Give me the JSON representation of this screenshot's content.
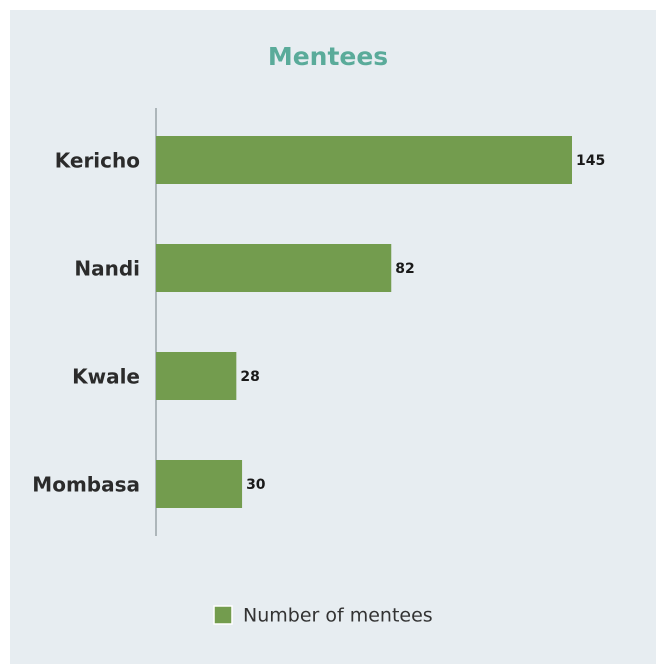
{
  "chart_data": {
    "type": "bar",
    "orientation": "horizontal",
    "title": "Mentees",
    "categories": [
      "Kericho",
      "Nandi",
      "Kwale",
      "Mombasa"
    ],
    "series": [
      {
        "name": "Number of mentees",
        "color": "#739c4e",
        "values": [
          145,
          82,
          28,
          30
        ]
      }
    ],
    "legend": "bottom"
  }
}
